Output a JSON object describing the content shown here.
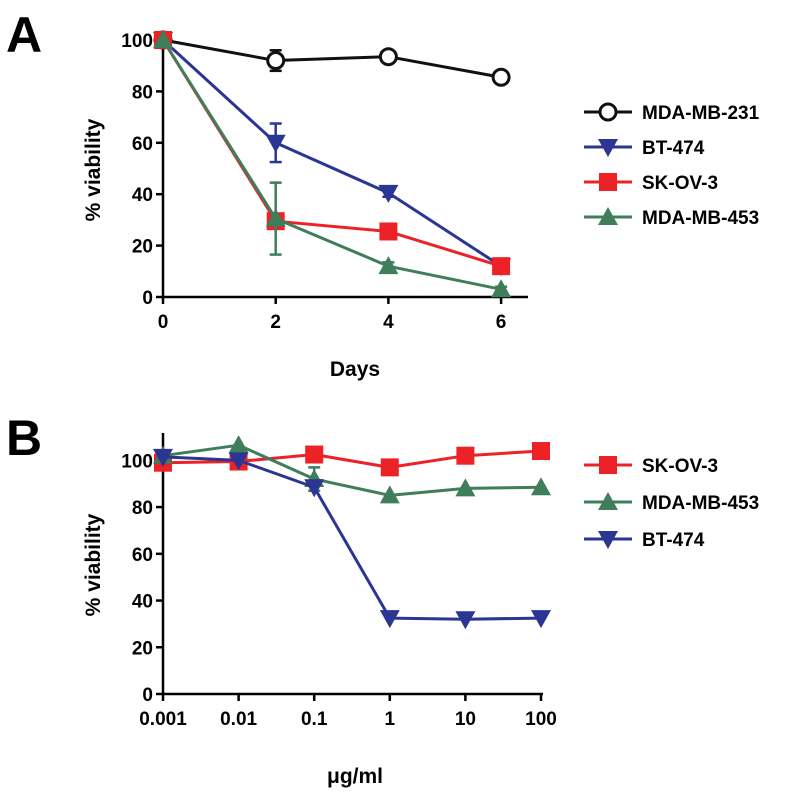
{
  "panels": {
    "a": {
      "letter": "A"
    },
    "b": {
      "letter": "B"
    }
  },
  "chart_data": [
    {
      "id": "a",
      "type": "line",
      "xlabel": "Days",
      "ylabel": "% viability",
      "x_scale": "linear",
      "xlim": [
        0,
        6.3
      ],
      "ylim": [
        0,
        100
      ],
      "xticks": [
        0,
        2,
        4,
        6
      ],
      "yticks": [
        0,
        20,
        40,
        60,
        80,
        100
      ],
      "x": [
        0,
        2,
        4,
        6
      ],
      "legend_position": "right",
      "grid": false,
      "series": [
        {
          "name": "MDA-MB-231",
          "color": "#111111",
          "marker": "circle-open",
          "values": [
            100,
            92,
            93.5,
            85.5
          ],
          "error": [
            0,
            4,
            2,
            1.5
          ]
        },
        {
          "name": "BT-474",
          "color": "#2b3593",
          "marker": "triangle-down",
          "values": [
            100,
            60,
            40.5,
            12
          ],
          "error": [
            0,
            7.5,
            1.5,
            1
          ]
        },
        {
          "name": "SK-OV-3",
          "color": "#ec2227",
          "marker": "square",
          "values": [
            100,
            29.5,
            25.5,
            12
          ],
          "error": [
            0,
            2,
            1,
            1
          ]
        },
        {
          "name": "MDA-MB-453",
          "color": "#3f7d5b",
          "marker": "triangle-up",
          "values": [
            100,
            30.5,
            12,
            3
          ],
          "error": [
            0,
            14,
            1.5,
            1
          ]
        }
      ]
    },
    {
      "id": "b",
      "type": "line",
      "xlabel": "μg/ml",
      "ylabel": "% viability",
      "x_scale": "log",
      "xlim": [
        0.001,
        100
      ],
      "ylim": [
        0,
        110
      ],
      "xticks": [
        0.001,
        0.01,
        0.1,
        1,
        10,
        100
      ],
      "xticklabels": [
        "0.001",
        "0.01",
        "0.1",
        "1",
        "10",
        "100"
      ],
      "yticks": [
        0,
        20,
        40,
        60,
        80,
        100
      ],
      "x": [
        0.001,
        0.01,
        0.1,
        1,
        10,
        100
      ],
      "legend_position": "right",
      "grid": false,
      "series": [
        {
          "name": "SK-OV-3",
          "color": "#ec2227",
          "marker": "square",
          "values": [
            99,
            99.5,
            102.5,
            97,
            102,
            104
          ],
          "error": [
            0,
            0,
            0,
            0,
            0,
            0
          ]
        },
        {
          "name": "MDA-MB-453",
          "color": "#3f7d5b",
          "marker": "triangle-up",
          "values": [
            102,
            106.5,
            92,
            85,
            88,
            88.5
          ],
          "error": [
            0,
            0,
            5,
            0,
            0,
            0
          ]
        },
        {
          "name": "BT-474",
          "color": "#2b3593",
          "marker": "triangle-down",
          "values": [
            101.5,
            100,
            88.5,
            32.5,
            32,
            32.5
          ],
          "error": [
            0,
            0,
            0,
            0,
            0,
            0
          ]
        }
      ]
    }
  ]
}
